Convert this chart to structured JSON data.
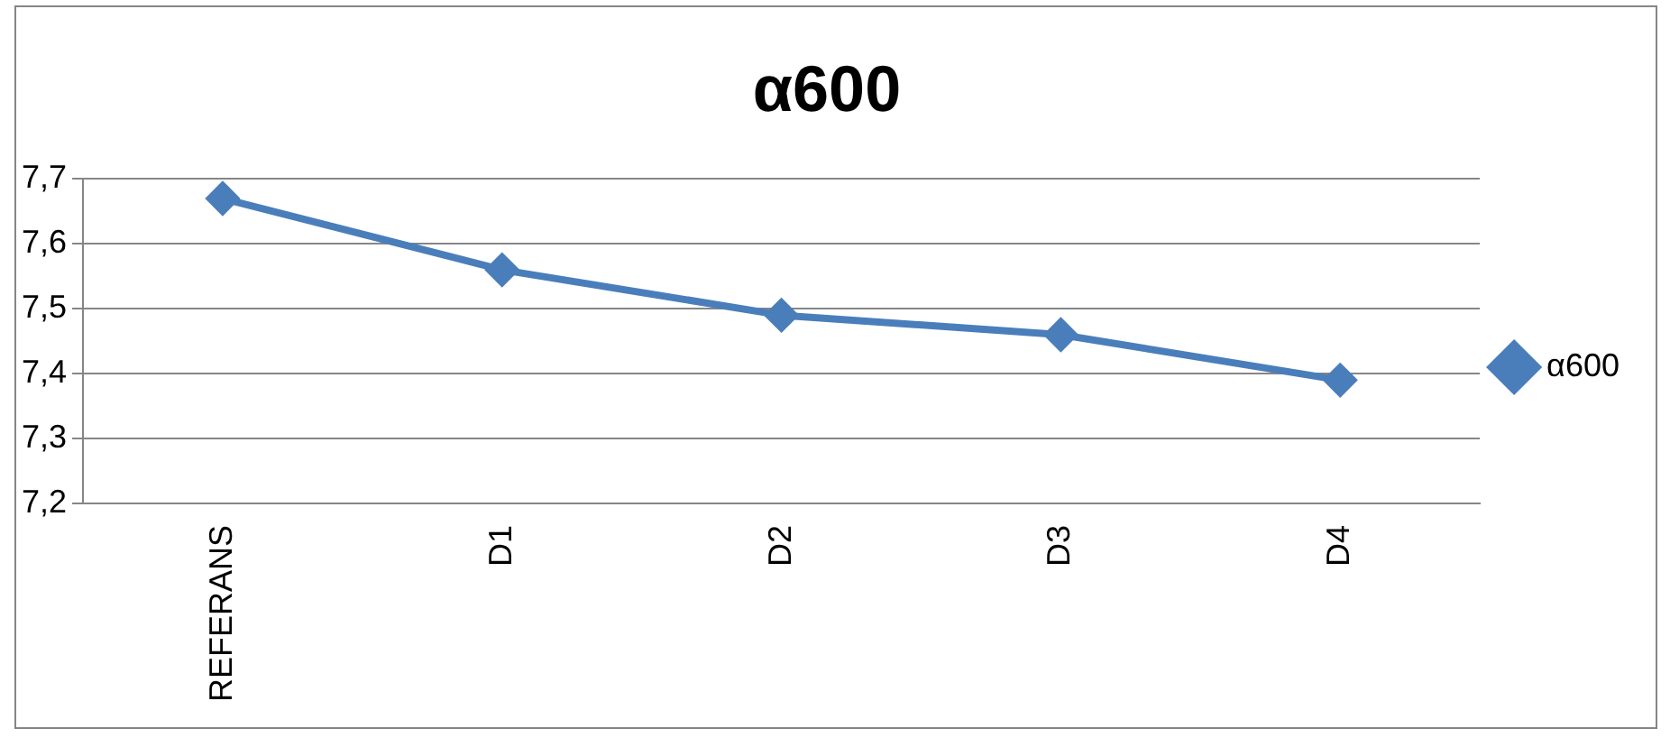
{
  "chart_data": {
    "type": "line",
    "title": "α600",
    "categories": [
      "REFERANS",
      "D1",
      "D2",
      "D3",
      "D4"
    ],
    "series": [
      {
        "name": "α600",
        "color": "#4a7ebb",
        "values": [
          7.67,
          7.56,
          7.49,
          7.46,
          7.39
        ]
      }
    ],
    "ylim": [
      7.2,
      7.7
    ],
    "yticks": [
      {
        "value": 7.2,
        "label": "7,2"
      },
      {
        "value": 7.3,
        "label": "7,3"
      },
      {
        "value": 7.4,
        "label": "7,4"
      },
      {
        "value": 7.5,
        "label": "7,5"
      },
      {
        "value": 7.6,
        "label": "7,6"
      },
      {
        "value": 7.7,
        "label": "7,7"
      }
    ],
    "grid": "y",
    "legend": "right",
    "marker": "diamond",
    "line_style": "solid"
  }
}
